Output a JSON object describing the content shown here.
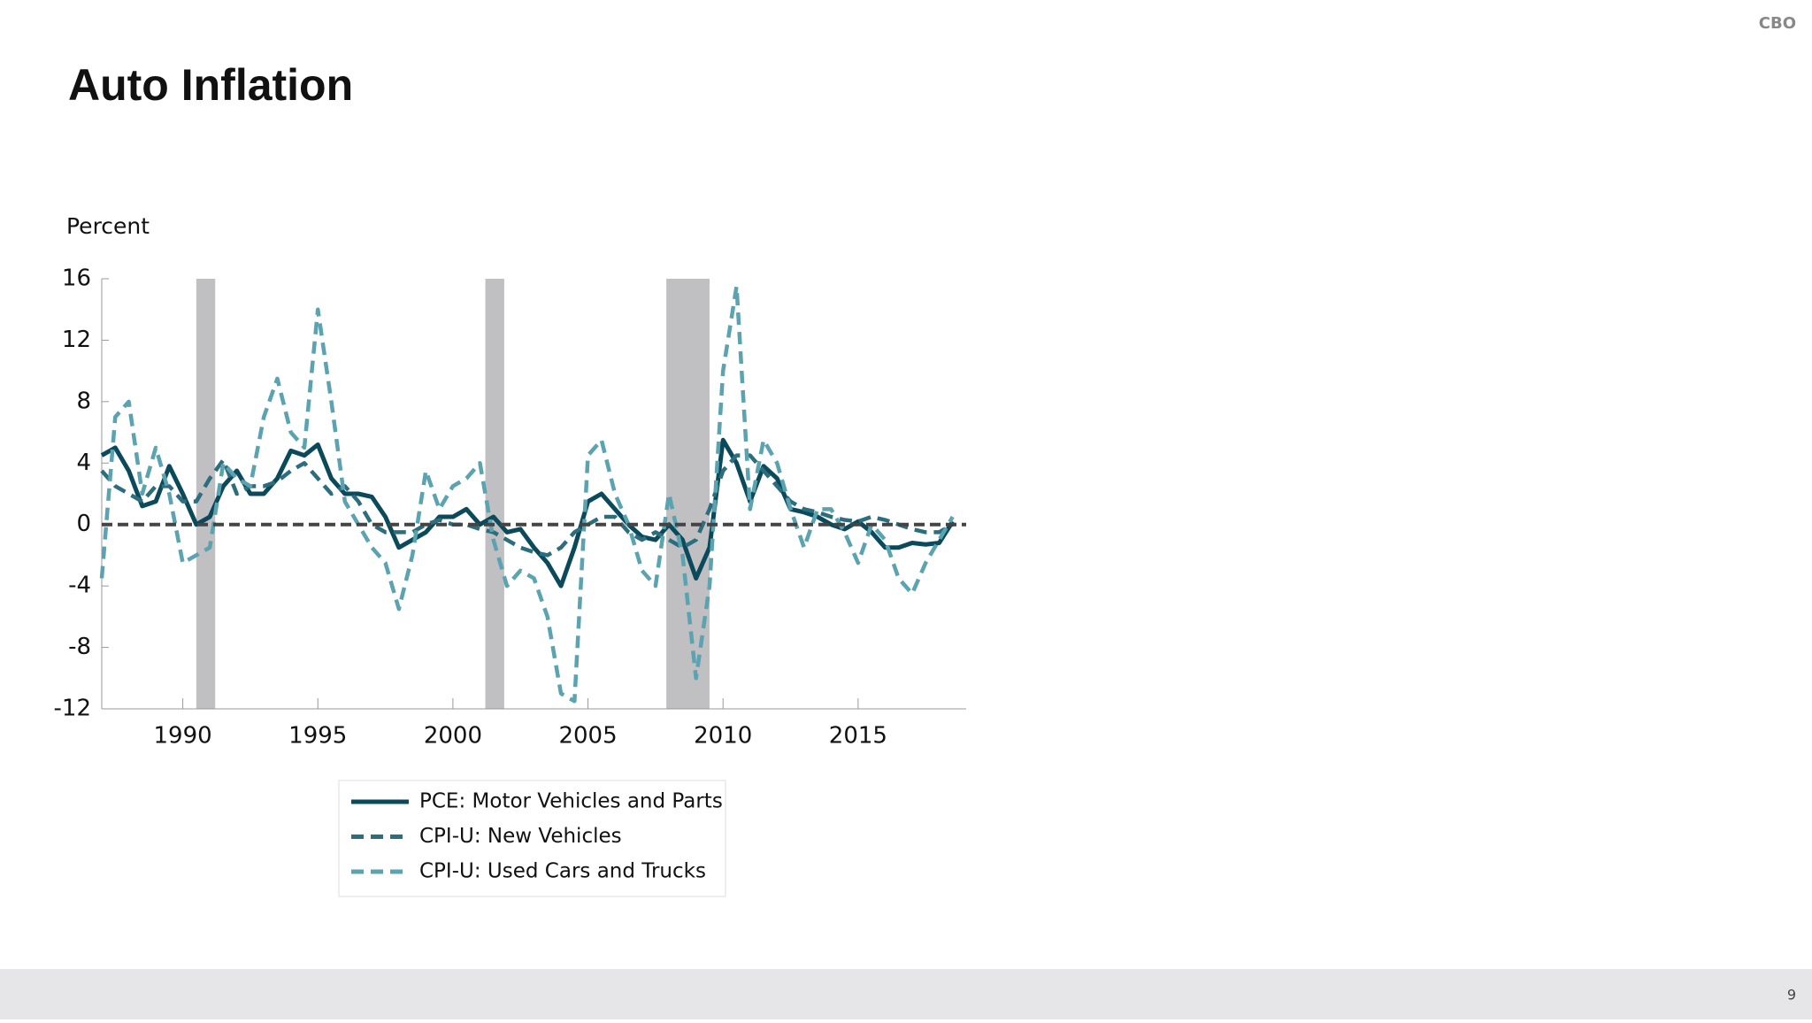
{
  "brand": "CBO",
  "page_number": "9",
  "chart_data": {
    "type": "line",
    "title": "Auto Inflation",
    "y_label": "Percent",
    "x": [
      1987,
      1987.5,
      1988,
      1988.5,
      1989,
      1989.5,
      1990,
      1990.5,
      1991,
      1991.5,
      1992,
      1992.5,
      1993,
      1993.5,
      1994,
      1994.5,
      1995,
      1995.5,
      1996,
      1996.5,
      1997,
      1997.5,
      1998,
      1998.5,
      1999,
      1999.5,
      2000,
      2000.5,
      2001,
      2001.5,
      2002,
      2002.5,
      2003,
      2003.5,
      2004,
      2004.5,
      2005,
      2005.5,
      2006,
      2006.5,
      2007,
      2007.5,
      2008,
      2008.5,
      2009,
      2009.5,
      2010,
      2010.5,
      2011,
      2011.5,
      2012,
      2012.5,
      2013,
      2013.5,
      2014,
      2014.5,
      2015,
      2015.5,
      2016,
      2016.5,
      2017,
      2017.5,
      2018,
      2018.5
    ],
    "series": [
      {
        "name": "PCE: Motor Vehicles and Parts",
        "color": "#0b4a5a",
        "line_style": "solid",
        "values": [
          4.5,
          5,
          3.5,
          1.2,
          1.5,
          3.8,
          2,
          0,
          0.5,
          2.5,
          3.5,
          2,
          2,
          3,
          4.8,
          4.5,
          5.2,
          3,
          2,
          2,
          1.8,
          0.5,
          -1.5,
          -1,
          -0.5,
          0.5,
          0.5,
          1,
          0,
          0.5,
          -0.5,
          -0.3,
          -1.5,
          -2.5,
          -4,
          -1.5,
          1.5,
          2,
          1,
          0,
          -0.8,
          -1,
          0,
          -1,
          -3.5,
          -1.5,
          5.5,
          4,
          1.5,
          3.8,
          3,
          1,
          0.8,
          0.5,
          0,
          -0.3,
          0.2,
          -0.5,
          -1.5,
          -1.5,
          -1.2,
          -1.3,
          -1.2,
          0.2
        ]
      },
      {
        "name": "CPI-U: New Vehicles",
        "color": "#2d6e7e",
        "line_style": "dashed",
        "values": [
          3.5,
          2.5,
          2,
          1.5,
          2.5,
          2.5,
          1.5,
          1.5,
          3,
          4.2,
          2,
          2.5,
          2.5,
          2.8,
          3.5,
          4,
          3,
          2,
          2.5,
          1.5,
          0,
          -0.5,
          -0.5,
          -0.5,
          0,
          0.3,
          0,
          0,
          -0.3,
          -0.5,
          -1,
          -1.5,
          -1.8,
          -2,
          -1.5,
          -0.5,
          0,
          0.5,
          0.5,
          -0.5,
          -1,
          -0.5,
          -1,
          -1.5,
          -1,
          1,
          3.5,
          4.5,
          4.5,
          3.5,
          2.5,
          1.5,
          1,
          0.8,
          0.5,
          0.3,
          0.2,
          0.5,
          0.3,
          0,
          -0.3,
          -0.5,
          -0.5,
          0
        ]
      },
      {
        "name": "CPI-U: Used Cars and Trucks",
        "color": "#5ba3b0",
        "line_style": "dashed",
        "values": [
          -3.5,
          7,
          8,
          2,
          5,
          2,
          -2.5,
          -2,
          -1.5,
          4,
          3,
          2.5,
          7,
          9.5,
          6,
          5,
          14,
          8,
          1.5,
          0,
          -1.5,
          -2.5,
          -5.5,
          -2,
          3.5,
          1,
          2.5,
          3,
          4,
          -1,
          -4,
          -3,
          -3.5,
          -6,
          -11,
          -11.5,
          4.5,
          5.5,
          2,
          0,
          -3,
          -4,
          2,
          -2,
          -10,
          -4,
          10,
          15.5,
          1,
          5.5,
          4,
          1,
          -1.5,
          1,
          1,
          -0.5,
          -2.5,
          0,
          -1,
          -3.5,
          -4.5,
          -2.5,
          -1,
          0.5
        ]
      }
    ],
    "xlim": [
      1987,
      2019
    ],
    "xticks": [
      1990,
      1995,
      2000,
      2005,
      2010,
      2015
    ],
    "ylim": [
      -12,
      16
    ],
    "yticks": [
      -12,
      -8,
      -4,
      0,
      4,
      8,
      12,
      16
    ],
    "shaded_periods": [
      [
        1990.5,
        1991.2
      ],
      [
        2001.2,
        2001.9
      ],
      [
        2007.9,
        2009.5
      ]
    ],
    "shade_color": "#c0bfc2",
    "zero_line": true,
    "legend": "bottom"
  }
}
